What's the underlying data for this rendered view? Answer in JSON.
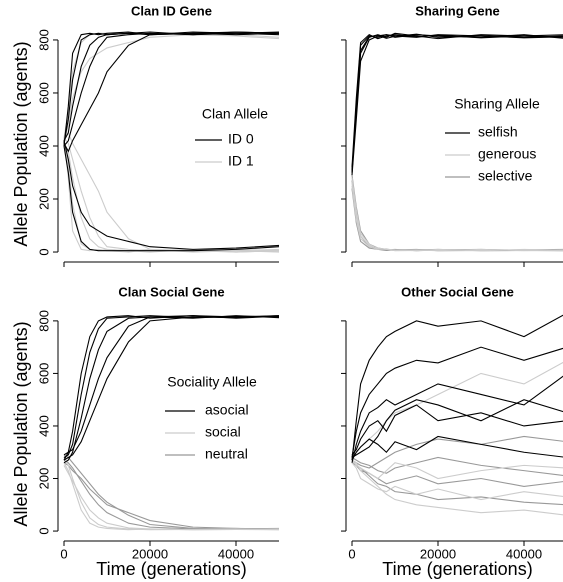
{
  "chart_data": [
    {
      "type": "line",
      "title": "Clan ID Gene",
      "ylabel": "Allele Population (agents)",
      "legend_title": "Clan Allele",
      "xlim": [
        0,
        50000
      ],
      "ylim": [
        -15,
        830
      ],
      "xticks": [
        0,
        20000,
        40000
      ],
      "yticks": [
        0,
        200,
        400,
        600,
        800
      ],
      "xtick_labels": false,
      "ytick_labels": true,
      "x": [
        0,
        1000,
        2000,
        4000,
        6000,
        8000,
        10000,
        15000,
        20000,
        30000,
        40000,
        50000
      ],
      "series": [
        {
          "name": "ID 0",
          "color": "#000000",
          "runs": [
            [
              400,
              550,
              750,
              820,
              825,
              820,
              825,
              830,
              820,
              825,
              830,
              825
            ],
            [
              410,
              500,
              650,
              800,
              820,
              825,
              820,
              825,
              830,
              820,
              825,
              830
            ],
            [
              420,
              450,
              550,
              700,
              780,
              810,
              820,
              825,
              820,
              830,
              825,
              820
            ],
            [
              400,
              420,
              480,
              600,
              700,
              770,
              810,
              820,
              825,
              820,
              830,
              825
            ],
            [
              410,
              380,
              420,
              480,
              540,
              600,
              680,
              780,
              820,
              825,
              820,
              825
            ],
            [
              400,
              300,
              150,
              40,
              10,
              5,
              5,
              5,
              5,
              5,
              10,
              20
            ],
            [
              420,
              350,
              250,
              150,
              100,
              80,
              60,
              40,
              20,
              10,
              15,
              25
            ]
          ]
        },
        {
          "name": "ID 1",
          "color": "#cccccc",
          "runs": [
            [
              430,
              280,
              80,
              10,
              5,
              10,
              5,
              0,
              10,
              5,
              0,
              5
            ],
            [
              420,
              330,
              180,
              30,
              10,
              5,
              10,
              5,
              0,
              10,
              5,
              0
            ],
            [
              410,
              380,
              280,
              130,
              50,
              20,
              10,
              5,
              10,
              0,
              5,
              10
            ],
            [
              430,
              410,
              350,
              230,
              130,
              60,
              20,
              10,
              5,
              10,
              0,
              5
            ],
            [
              420,
              450,
              410,
              350,
              290,
              230,
              150,
              50,
              10,
              5,
              10,
              5
            ],
            [
              430,
              530,
              680,
              790,
              820,
              825,
              825,
              825,
              825,
              825,
              820,
              810
            ],
            [
              410,
              480,
              580,
              680,
              730,
              750,
              770,
              790,
              810,
              820,
              815,
              805
            ]
          ]
        }
      ]
    },
    {
      "type": "line",
      "title": "Sharing Gene",
      "legend_title": "Sharing Allele",
      "xlim": [
        0,
        50000
      ],
      "ylim": [
        -15,
        830
      ],
      "xticks": [
        0,
        20000,
        40000
      ],
      "yticks": [
        0,
        200,
        400,
        600,
        800
      ],
      "xtick_labels": false,
      "ytick_labels": false,
      "x": [
        0,
        1000,
        2000,
        4000,
        6000,
        8000,
        10000,
        15000,
        20000,
        30000,
        40000,
        50000
      ],
      "series": [
        {
          "name": "selfish",
          "color": "#000000",
          "runs": [
            [
              300,
              560,
              780,
              815,
              810,
              820,
              815,
              810,
              820,
              815,
              810,
              815
            ],
            [
              310,
              520,
              750,
              810,
              820,
              810,
              825,
              815,
              805,
              820,
              815,
              810
            ],
            [
              290,
              500,
              720,
              800,
              815,
              820,
              810,
              820,
              815,
              810,
              820,
              805
            ],
            [
              320,
              580,
              790,
              820,
              805,
              815,
              820,
              812,
              818,
              808,
              815,
              820
            ],
            [
              300,
              540,
              760,
              812,
              818,
              806,
              814,
              822,
              810,
              816,
              808,
              812
            ]
          ]
        },
        {
          "name": "generous",
          "color": "#cccccc",
          "runs": [
            [
              260,
              140,
              60,
              25,
              15,
              10,
              8,
              5,
              10,
              6,
              8,
              5
            ],
            [
              280,
              160,
              70,
              30,
              12,
              10,
              6,
              8,
              5,
              10,
              5,
              8
            ],
            [
              250,
              120,
              50,
              20,
              10,
              12,
              5,
              6,
              8,
              5,
              10,
              6
            ]
          ]
        },
        {
          "name": "selective",
          "color": "#999999",
          "runs": [
            [
              270,
              150,
              60,
              20,
              12,
              8,
              10,
              5,
              8,
              10,
              6,
              5
            ],
            [
              240,
              110,
              40,
              15,
              10,
              6,
              8,
              10,
              5,
              6,
              8,
              10
            ],
            [
              290,
              170,
              80,
              30,
              15,
              10,
              6,
              8,
              10,
              5,
              6,
              8
            ]
          ]
        }
      ]
    },
    {
      "type": "line",
      "title": "Clan Social Gene",
      "ylabel": "Allele Population (agents)",
      "xlabel": "Time (generations)",
      "legend_title": "Sociality Allele",
      "xlim": [
        0,
        50000
      ],
      "ylim": [
        -15,
        830
      ],
      "xticks": [
        0,
        20000,
        40000
      ],
      "yticks": [
        0,
        200,
        400,
        600,
        800
      ],
      "xtick_labels": true,
      "ytick_labels": true,
      "x": [
        0,
        1000,
        2000,
        4000,
        6000,
        8000,
        10000,
        15000,
        20000,
        30000,
        40000,
        50000
      ],
      "series": [
        {
          "name": "asocial",
          "color": "#000000",
          "runs": [
            [
              270,
              300,
              380,
              600,
              740,
              800,
              815,
              820,
              810,
              820,
              815,
              820
            ],
            [
              280,
              290,
              330,
              520,
              680,
              770,
              810,
              815,
              820,
              812,
              818,
              815
            ],
            [
              260,
              270,
              300,
              430,
              580,
              690,
              760,
              810,
              815,
              820,
              810,
              818
            ],
            [
              290,
              300,
              310,
              380,
              480,
              580,
              660,
              780,
              815,
              810,
              820,
              812
            ],
            [
              270,
              280,
              290,
              340,
              420,
              500,
              580,
              720,
              800,
              815,
              812,
              820
            ]
          ]
        },
        {
          "name": "social",
          "color": "#cccccc",
          "runs": [
            [
              260,
              230,
              180,
              80,
              30,
              15,
              10,
              5,
              8,
              5,
              6,
              8
            ],
            [
              280,
              250,
              200,
              110,
              50,
              25,
              15,
              8,
              5,
              6,
              8,
              5
            ],
            [
              250,
              220,
              190,
              130,
              80,
              50,
              30,
              12,
              8,
              5,
              6,
              5
            ]
          ]
        },
        {
          "name": "neutral",
          "color": "#999999",
          "runs": [
            [
              270,
              260,
              240,
              190,
              140,
              100,
              70,
              30,
              15,
              8,
              10,
              6
            ],
            [
              290,
              280,
              260,
              220,
              180,
              140,
              110,
              60,
              25,
              10,
              8,
              10
            ],
            [
              260,
              250,
              230,
              200,
              160,
              130,
              100,
              70,
              40,
              15,
              10,
              8
            ]
          ]
        }
      ]
    },
    {
      "type": "line",
      "title": "Other Social Gene",
      "xlabel": "Time (generations)",
      "xlim": [
        0,
        50000
      ],
      "ylim": [
        -15,
        830
      ],
      "xticks": [
        0,
        20000,
        40000
      ],
      "yticks": [
        0,
        200,
        400,
        600,
        800
      ],
      "xtick_labels": true,
      "ytick_labels": false,
      "x": [
        0,
        1000,
        2000,
        4000,
        6000,
        8000,
        10000,
        15000,
        20000,
        30000,
        40000,
        50000
      ],
      "series": [
        {
          "name": "asocial",
          "color": "#000000",
          "runs": [
            [
              270,
              420,
              560,
              650,
              700,
              740,
              760,
              800,
              780,
              800,
              740,
              830
            ],
            [
              280,
              380,
              450,
              520,
              560,
              600,
              620,
              650,
              640,
              700,
              650,
              700
            ],
            [
              260,
              330,
              380,
              450,
              470,
              500,
              480,
              520,
              560,
              520,
              480,
              600
            ],
            [
              290,
              310,
              350,
              400,
              420,
              380,
              440,
              480,
              420,
              450,
              400,
              420
            ],
            [
              270,
              300,
              320,
              350,
              330,
              300,
              340,
              310,
              360,
              330,
              300,
              280
            ],
            [
              280,
              290,
              300,
              320,
              360,
              420,
              460,
              500,
              480,
              420,
              500,
              450
            ]
          ]
        },
        {
          "name": "social",
          "color": "#cccccc",
          "runs": [
            [
              270,
              250,
              240,
              220,
              200,
              230,
              260,
              240,
              200,
              230,
              250,
              240
            ],
            [
              260,
              240,
              200,
              180,
              160,
              150,
              170,
              140,
              160,
              120,
              150,
              130
            ],
            [
              280,
              300,
              320,
              350,
              380,
              420,
              450,
              480,
              520,
              600,
              560,
              650
            ],
            [
              270,
              260,
              230,
              200,
              170,
              140,
              120,
              100,
              90,
              70,
              80,
              60
            ]
          ]
        },
        {
          "name": "neutral",
          "color": "#999999",
          "runs": [
            [
              270,
              260,
              250,
              240,
              260,
              280,
              300,
              330,
              350,
              330,
              360,
              340
            ],
            [
              260,
              250,
              230,
              220,
              200,
              180,
              190,
              210,
              180,
              200,
              170,
              190
            ],
            [
              280,
              270,
              260,
              250,
              230,
              220,
              240,
              260,
              280,
              250,
              230,
              210
            ],
            [
              270,
              250,
              240,
              210,
              180,
              170,
              150,
              140,
              120,
              130,
              110,
              100
            ]
          ]
        }
      ]
    }
  ]
}
